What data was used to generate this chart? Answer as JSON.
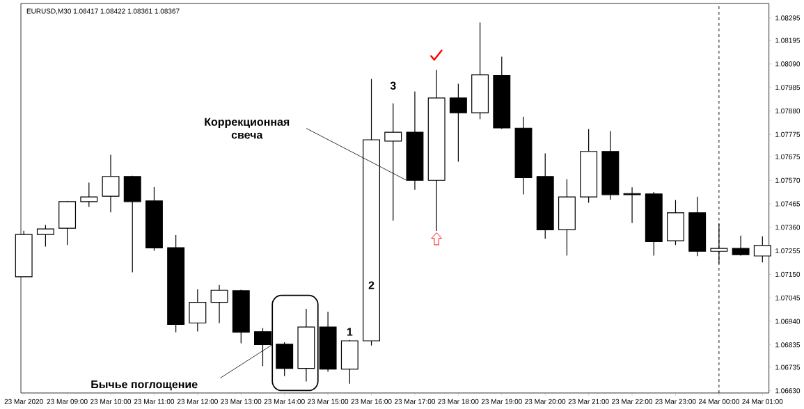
{
  "chart_data": {
    "type": "candlestick",
    "title": "EURUSD,M30 1.08417 1.08422 1.08361 1.08367",
    "x": [
      "2020-03-23T08:00",
      "2020-03-23T08:30",
      "2020-03-23T09:00",
      "2020-03-23T09:30",
      "2020-03-23T10:00",
      "2020-03-23T10:30",
      "2020-03-23T11:00",
      "2020-03-23T11:30",
      "2020-03-23T12:00",
      "2020-03-23T12:30",
      "2020-03-23T13:00",
      "2020-03-23T13:30",
      "2020-03-23T14:00",
      "2020-03-23T14:30",
      "2020-03-23T15:00",
      "2020-03-23T15:30",
      "2020-03-23T16:00",
      "2020-03-23T16:30",
      "2020-03-23T17:00",
      "2020-03-23T17:30",
      "2020-03-23T18:00",
      "2020-03-23T18:30",
      "2020-03-23T19:00",
      "2020-03-23T19:30",
      "2020-03-23T20:00",
      "2020-03-23T20:30",
      "2020-03-23T21:00",
      "2020-03-23T21:30",
      "2020-03-23T22:00",
      "2020-03-23T22:30",
      "2020-03-23T23:00",
      "2020-03-23T23:30",
      "2020-03-24T00:00",
      "2020-03-24T00:30",
      "2020-03-24T01:00"
    ],
    "ohlc": [
      [
        1.07139,
        1.07345,
        1.07139,
        1.07328
      ],
      [
        1.07328,
        1.0737,
        1.07274,
        1.07353
      ],
      [
        1.07356,
        1.07478,
        1.07281,
        1.07475
      ],
      [
        1.07475,
        1.0756,
        1.07451,
        1.07496
      ],
      [
        1.07499,
        1.07684,
        1.07427,
        1.07587
      ],
      [
        1.07587,
        1.0759,
        1.07159,
        1.07475
      ],
      [
        1.07478,
        1.0754,
        1.07255,
        1.07268
      ],
      [
        1.07269,
        1.07325,
        1.06891,
        1.06926
      ],
      [
        1.06933,
        1.07083,
        1.06895,
        1.07025
      ],
      [
        1.07025,
        1.07102,
        1.06932,
        1.07079
      ],
      [
        1.07077,
        1.07081,
        1.06842,
        1.06891
      ],
      [
        1.06894,
        1.0691,
        1.0674,
        1.06836
      ],
      [
        1.06838,
        1.06847,
        1.06695,
        1.0673
      ],
      [
        1.0673,
        1.06996,
        1.06671,
        1.06915
      ],
      [
        1.06915,
        1.06983,
        1.06715,
        1.06727
      ],
      [
        1.06727,
        1.06856,
        1.06661,
        1.06853
      ],
      [
        1.06853,
        1.08023,
        1.06832,
        1.07751
      ],
      [
        1.07745,
        1.07914,
        1.0739,
        1.07785
      ],
      [
        1.07785,
        1.07967,
        1.07528,
        1.0757
      ],
      [
        1.0757,
        1.08063,
        1.07344,
        1.07938
      ],
      [
        1.07938,
        1.08001,
        1.07653,
        1.07872
      ],
      [
        1.07872,
        1.08275,
        1.07843,
        1.08041
      ],
      [
        1.08038,
        1.08122,
        1.078,
        1.07804
      ],
      [
        1.07803,
        1.07854,
        1.07507,
        1.07582
      ],
      [
        1.07587,
        1.0769,
        1.07309,
        1.07349
      ],
      [
        1.0735,
        1.07575,
        1.07234,
        1.07496
      ],
      [
        1.07496,
        1.07799,
        1.0747,
        1.07699
      ],
      [
        1.07699,
        1.0779,
        1.07483,
        1.07506
      ],
      [
        1.07511,
        1.07539,
        1.0738,
        1.07506
      ],
      [
        1.07509,
        1.07518,
        1.07234,
        1.07296
      ],
      [
        1.073,
        1.07482,
        1.07281,
        1.07425
      ],
      [
        1.07425,
        1.07497,
        1.07231,
        1.07253
      ],
      [
        1.07253,
        1.07376,
        1.07199,
        1.07266
      ],
      [
        1.07266,
        1.07323,
        1.07234,
        1.07238
      ],
      [
        1.07232,
        1.0732,
        1.07203,
        1.07279
      ]
    ],
    "xlim": [
      "2020-03-23T07:56",
      "2020-03-24T01:09"
    ],
    "ylim": [
      1.0662,
      1.0836
    ],
    "xticks": [
      {
        "value": "2020-03-23T08:00",
        "label": "23 Mar 2020"
      },
      {
        "value": "2020-03-23T09:00",
        "label": "23 Mar 09:00"
      },
      {
        "value": "2020-03-23T10:00",
        "label": "23 Mar 10:00"
      },
      {
        "value": "2020-03-23T11:00",
        "label": "23 Mar 11:00"
      },
      {
        "value": "2020-03-23T12:00",
        "label": "23 Mar 12:00"
      },
      {
        "value": "2020-03-23T13:00",
        "label": "23 Mar 13:00"
      },
      {
        "value": "2020-03-23T14:00",
        "label": "23 Mar 14:00"
      },
      {
        "value": "2020-03-23T15:00",
        "label": "23 Mar 15:00"
      },
      {
        "value": "2020-03-23T16:00",
        "label": "23 Mar 16:00"
      },
      {
        "value": "2020-03-23T17:00",
        "label": "23 Mar 17:00"
      },
      {
        "value": "2020-03-23T18:00",
        "label": "23 Mar 18:00"
      },
      {
        "value": "2020-03-23T19:00",
        "label": "23 Mar 19:00"
      },
      {
        "value": "2020-03-23T20:00",
        "label": "23 Mar 20:00"
      },
      {
        "value": "2020-03-23T21:00",
        "label": "23 Mar 21:00"
      },
      {
        "value": "2020-03-23T22:00",
        "label": "23 Mar 22:00"
      },
      {
        "value": "2020-03-23T23:00",
        "label": "23 Mar 23:00"
      },
      {
        "value": "2020-03-24T00:00",
        "label": "24 Mar 00:00"
      },
      {
        "value": "2020-03-24T01:00",
        "label": "24 Mar 01:00"
      }
    ],
    "yticks": [
      {
        "value": 1.0663,
        "label": "1.06630"
      },
      1.06735,
      1.06835,
      {
        "value": 1.0694,
        "label": "1.06940"
      },
      1.07045,
      {
        "value": 1.0715,
        "label": "1.07150"
      },
      1.07255,
      {
        "value": 1.0736,
        "label": "1.07360"
      },
      1.07465,
      {
        "value": 1.0757,
        "label": "1.07570"
      },
      1.07675,
      1.07775,
      {
        "value": 1.0788,
        "label": "1.07880"
      },
      1.07985,
      {
        "value": 1.0809,
        "label": "1.08090"
      },
      1.08195,
      1.08295
    ],
    "ref_lines": [
      {
        "axis": "x",
        "value": "2020-03-24T00:00",
        "color": "#000000",
        "line_style": "dashed"
      }
    ],
    "annotations": [
      "Коррекционная свеча",
      "Бычье поглощение",
      "1",
      "2",
      "3"
    ]
  }
}
